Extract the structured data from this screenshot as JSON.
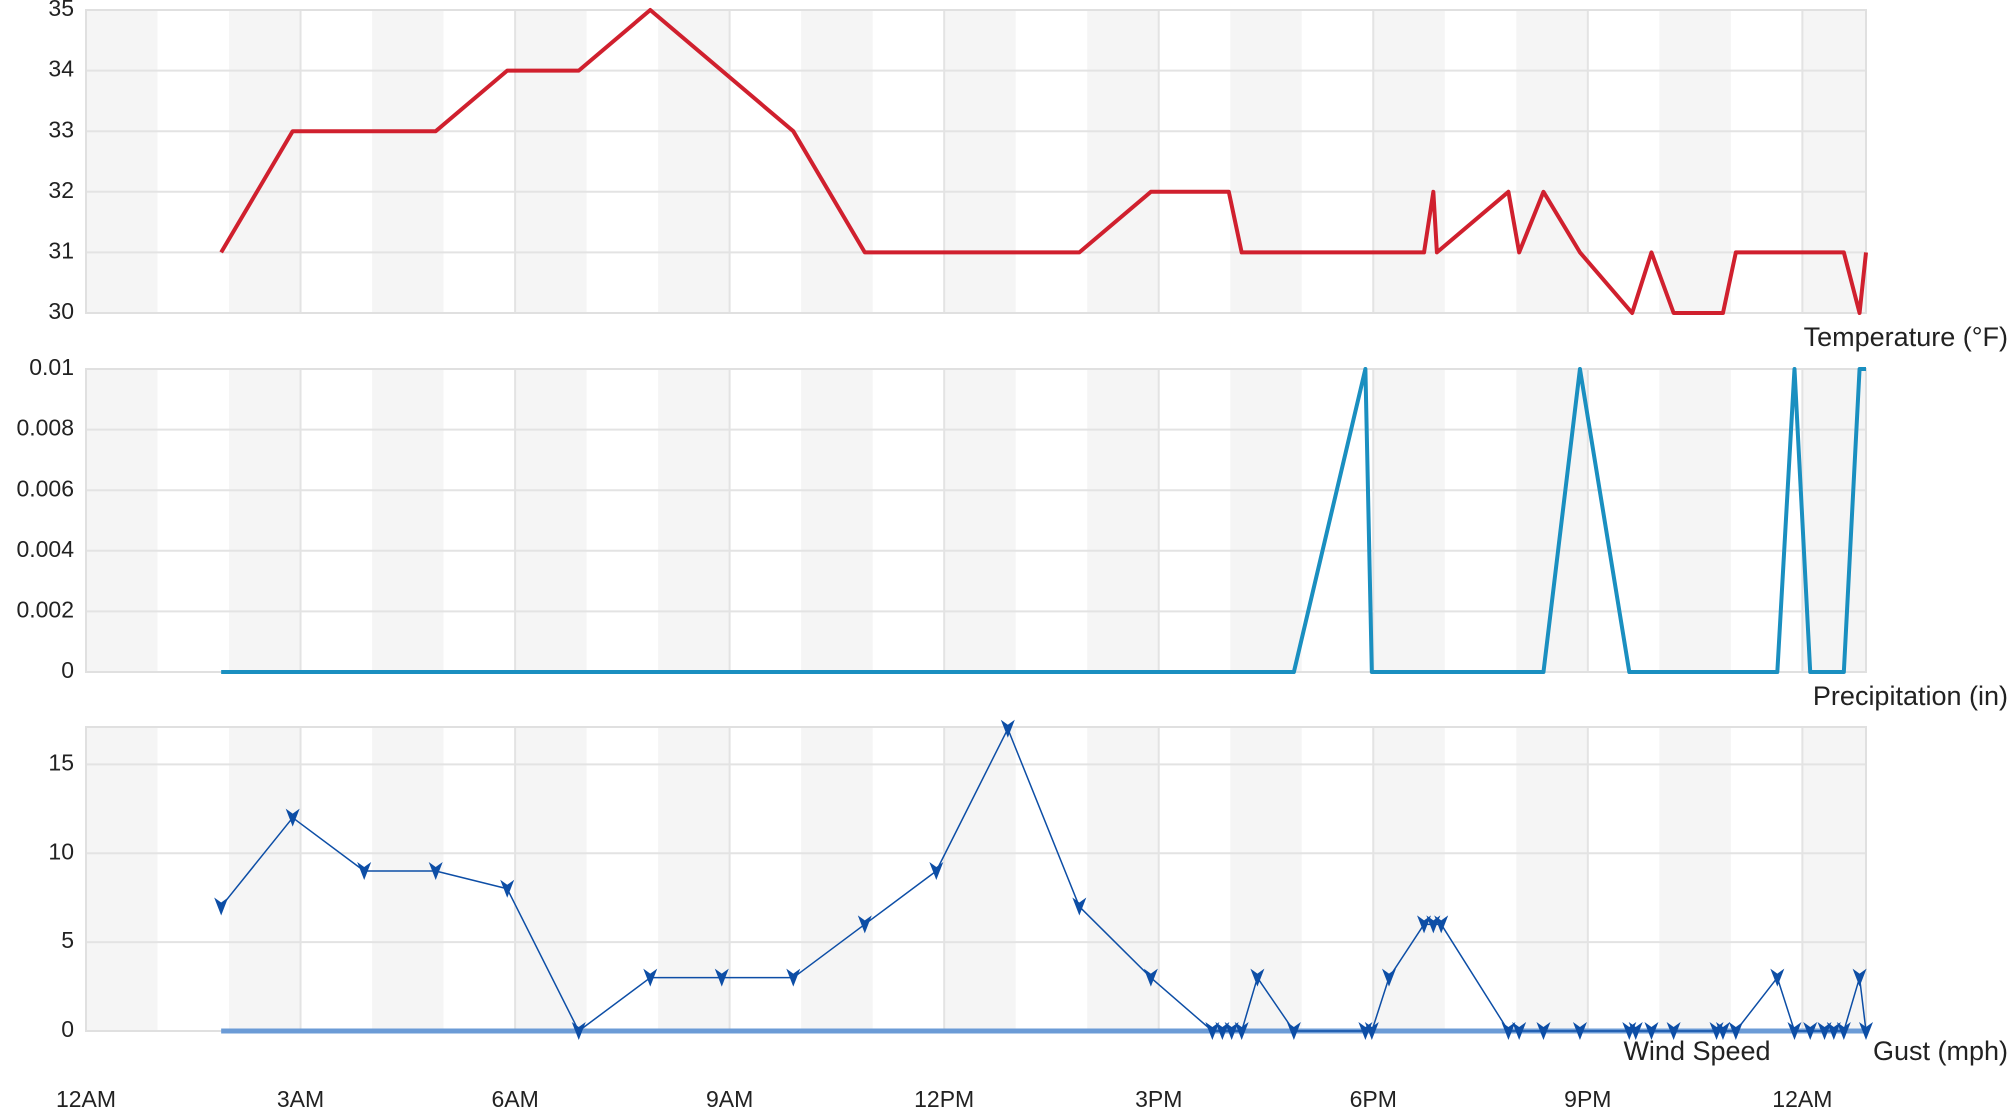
{
  "chart_data": [
    {
      "type": "line",
      "label": "Temperature (°F)",
      "color": "#d0202e",
      "x": [
        1.89,
        2.89,
        4.89,
        5.89,
        6.89,
        7.89,
        9.89,
        10.89,
        13.89,
        14.89,
        15.98,
        16.16,
        18.71,
        18.84,
        18.89,
        19.89,
        20.04,
        20.38,
        20.89,
        21.62,
        21.89,
        22.2,
        22.89,
        23.07,
        24.58,
        24.8,
        24.89
      ],
      "values": [
        31,
        33,
        33,
        34,
        34,
        35,
        33,
        31,
        31,
        32,
        32,
        31,
        31,
        32,
        31,
        32,
        31,
        32,
        31,
        30,
        31,
        30,
        30,
        31,
        31,
        30,
        31
      ],
      "xlim": [
        0,
        24.89
      ],
      "ylim": [
        30,
        35
      ],
      "yticks": [
        30,
        31,
        32,
        33,
        34,
        35
      ],
      "grid": true
    },
    {
      "type": "line",
      "label": "Precipitation (in)",
      "color": "#1a8fc0",
      "x": [
        1.89,
        16.89,
        17.89,
        17.98,
        20.38,
        20.89,
        21.58,
        23.65,
        23.89,
        24.11,
        24.58,
        24.8,
        24.89
      ],
      "values": [
        0,
        0,
        0.01,
        0,
        0,
        0.01,
        0,
        0,
        0.01,
        0,
        0,
        0.01,
        0.01
      ],
      "xlim": [
        0,
        24.89
      ],
      "ylim": [
        0,
        0.01
      ],
      "yticks": [
        0,
        0.002,
        0.004,
        0.006,
        0.008,
        0.01
      ],
      "grid": true
    },
    {
      "type": "wind",
      "x": [
        1.89,
        2.89,
        3.89,
        4.89,
        5.89,
        6.89,
        7.89,
        8.89,
        9.89,
        10.89,
        11.89,
        12.89,
        13.89,
        14.89,
        15.75,
        15.89,
        16.02,
        16.16,
        16.38,
        16.89,
        17.89,
        17.98,
        18.22,
        18.71,
        18.84,
        18.95,
        19.89,
        20.04,
        20.38,
        20.89,
        21.58,
        21.67,
        21.89,
        22.2,
        22.8,
        22.89,
        23.07,
        23.65,
        23.89,
        24.11,
        24.31,
        24.44,
        24.58,
        24.8,
        24.89
      ],
      "series": [
        {
          "name": "Wind Speed",
          "color": "#0d4ea6",
          "values": [
            7,
            12,
            9,
            9,
            8,
            0,
            3,
            3,
            3,
            6,
            9,
            17,
            7,
            3,
            0,
            0,
            0,
            0,
            3,
            0,
            0,
            0,
            3,
            6,
            6,
            6,
            0,
            0,
            0,
            0,
            0,
            0,
            0,
            0,
            0,
            0,
            0,
            3,
            0,
            0,
            0,
            0,
            0,
            3,
            0
          ]
        },
        {
          "name": "Gust (mph)",
          "color": "#6b9bd6",
          "values": [
            0,
            0,
            0,
            0,
            0,
            0,
            0,
            0,
            0,
            0,
            0,
            0,
            0,
            0,
            0,
            0,
            0,
            0,
            0,
            0,
            0,
            0,
            0,
            0,
            0,
            0,
            0,
            0,
            0,
            0,
            0,
            0,
            0,
            0,
            0,
            0,
            0,
            0,
            0,
            0,
            0,
            0,
            0,
            0,
            0
          ]
        }
      ],
      "xlim": [
        0,
        24.89
      ],
      "ylim": [
        0,
        17.1
      ],
      "yticks": [
        0,
        5,
        10,
        15
      ],
      "grid": true,
      "xticks": [
        {
          "value": 0,
          "label": "12AM"
        },
        {
          "value": 3,
          "label": "3AM"
        },
        {
          "value": 6,
          "label": "6AM"
        },
        {
          "value": 9,
          "label": "9AM"
        },
        {
          "value": 12,
          "label": "12PM"
        },
        {
          "value": 15,
          "label": "3PM"
        },
        {
          "value": 18,
          "label": "6PM"
        },
        {
          "value": 21,
          "label": "9PM"
        },
        {
          "value": 24,
          "label": "12AM"
        }
      ]
    }
  ]
}
